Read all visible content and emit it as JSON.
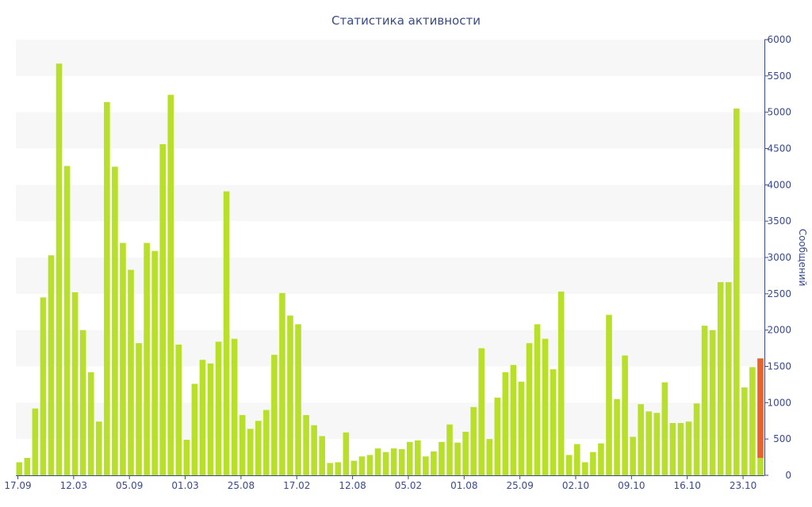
{
  "chart_data": {
    "type": "bar",
    "title": "Статистика активности",
    "xlabel": "",
    "ylabel": "Сообщений",
    "ylim": [
      0,
      6000
    ],
    "yticks": [
      0,
      500,
      1000,
      1500,
      2000,
      2500,
      3000,
      3500,
      4000,
      4500,
      5000,
      5500,
      6000
    ],
    "x_tick_labels": [
      {
        "index": 0,
        "label": "17.09"
      },
      {
        "index": 7,
        "label": "12.03"
      },
      {
        "index": 14,
        "label": "05.09"
      },
      {
        "index": 21,
        "label": "01.03"
      },
      {
        "index": 28,
        "label": "25.08"
      },
      {
        "index": 35,
        "label": "17.02"
      },
      {
        "index": 42,
        "label": "12.08"
      },
      {
        "index": 49,
        "label": "05.02"
      },
      {
        "index": 56,
        "label": "01.08"
      },
      {
        "index": 63,
        "label": "25.09"
      },
      {
        "index": 70,
        "label": "02.10"
      },
      {
        "index": 77,
        "label": "09.10"
      },
      {
        "index": 84,
        "label": "16.10"
      },
      {
        "index": 91,
        "label": "23.10"
      }
    ],
    "grid": "horizontal bands",
    "colors": {
      "bar": "#b8e02a",
      "highlight": "#e8622a",
      "band": "#f7f7f7",
      "axis": "#3a4a8a"
    },
    "values": [
      180,
      240,
      920,
      2450,
      3030,
      5670,
      4260,
      2520,
      2000,
      1420,
      740,
      5140,
      4250,
      3200,
      2830,
      1820,
      3200,
      3090,
      4560,
      5240,
      1800,
      490,
      1260,
      1590,
      1540,
      1840,
      3910,
      1880,
      830,
      640,
      750,
      900,
      1660,
      2510,
      2200,
      2080,
      830,
      690,
      540,
      170,
      180,
      590,
      200,
      260,
      280,
      370,
      320,
      370,
      360,
      460,
      480,
      260,
      330,
      460,
      700,
      450,
      600,
      940,
      1750,
      500,
      1070,
      1420,
      1520,
      1290,
      1820,
      2080,
      1880,
      1460,
      2530,
      280,
      430,
      180,
      320,
      440,
      2210,
      1050,
      1650,
      530,
      980,
      880,
      860,
      1280,
      720,
      720,
      740,
      990,
      2060,
      2000,
      2660,
      2660,
      5050,
      1210,
      1490,
      1610
    ],
    "highlight_index": 93,
    "highlight_base": 240
  }
}
